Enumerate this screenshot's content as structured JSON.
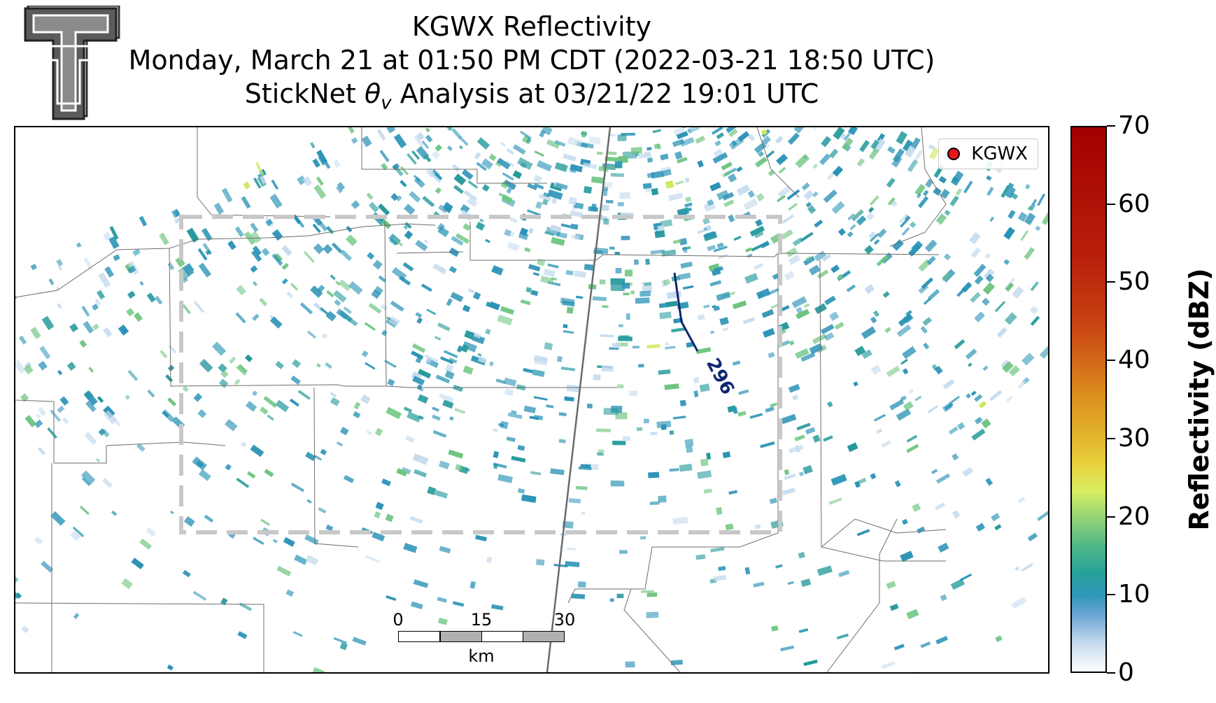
{
  "title": {
    "line1": "KGWX Reflectivity",
    "line2": "Monday, March 21 at 01:50 PM CDT (2022-03-21 18:50 UTC)",
    "line3_prefix": "StickNet ",
    "line3_symbol": "θ",
    "line3_subscript": "v",
    "line3_suffix": " Analysis at 03/21/22 19:01 UTC"
  },
  "legend": {
    "marker_color": "#e8141a",
    "label": "KGWX"
  },
  "contour": {
    "label": "296",
    "color": "#0f2670"
  },
  "scale_bar": {
    "ticks": [
      "0",
      "15",
      "30"
    ],
    "unit": "km"
  },
  "colorbar": {
    "label": "Reflectivity (dBZ)",
    "ticks": [
      "0",
      "10",
      "20",
      "30",
      "40",
      "50",
      "60",
      "70"
    ],
    "min": 0,
    "max": 70
  },
  "analysis_box": {
    "color": "#c8c8c8",
    "style": "dashed"
  },
  "logo": {
    "name": "texas-tech-double-t-logo"
  },
  "colors": {
    "echo_light": "#c6dcee",
    "echo_mid": "#2b93b6",
    "echo_teal": "#22989a",
    "echo_green": "#6cc47e",
    "echo_yellow": "#cfe85a"
  }
}
